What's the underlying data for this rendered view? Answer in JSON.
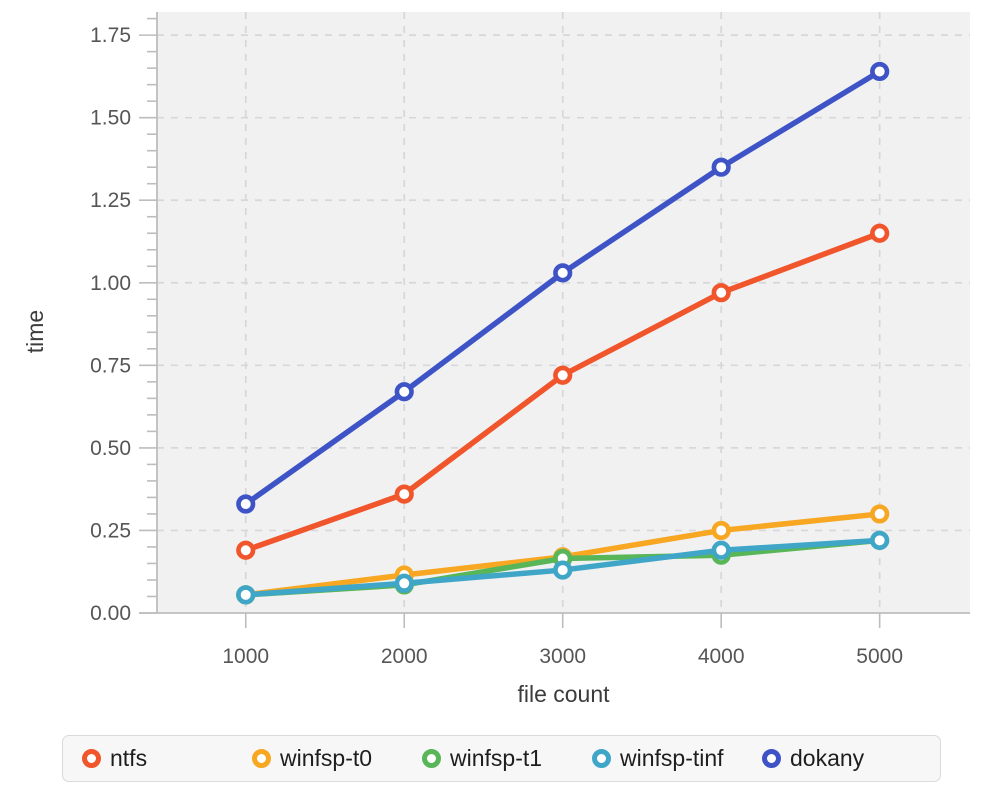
{
  "chart_data": {
    "type": "line",
    "title": "",
    "xlabel": "file count",
    "ylabel": "time",
    "x": [
      1000,
      2000,
      3000,
      4000,
      5000
    ],
    "series": [
      {
        "name": "ntfs",
        "color": "#F0552B",
        "values": [
          0.19,
          0.36,
          0.72,
          0.97,
          1.15
        ]
      },
      {
        "name": "winfsp-t0",
        "color": "#F7A722",
        "values": [
          0.055,
          0.115,
          0.17,
          0.25,
          0.3
        ]
      },
      {
        "name": "winfsp-t1",
        "color": "#58B658",
        "values": [
          0.055,
          0.085,
          0.165,
          0.175,
          0.22
        ]
      },
      {
        "name": "winfsp-tinf",
        "color": "#3FA6C7",
        "values": [
          0.055,
          0.09,
          0.13,
          0.19,
          0.22
        ]
      },
      {
        "name": "dokany",
        "color": "#3E54C6",
        "values": [
          0.33,
          0.67,
          1.03,
          1.35,
          1.64
        ]
      }
    ],
    "x_ticks": [
      1000,
      2000,
      3000,
      4000,
      5000
    ],
    "y_ticks": [
      0,
      0.25,
      0.5,
      0.75,
      1.0,
      1.25,
      1.5,
      1.75
    ],
    "y_tick_labels": [
      "0.00",
      "0.25",
      "0.50",
      "0.75",
      "1.00",
      "1.25",
      "1.50",
      "1.75"
    ],
    "xlim": [
      440,
      5570
    ],
    "ylim": [
      0,
      1.82
    ],
    "y_minor_step": 0.05,
    "grid": true,
    "legend_position": "bottom",
    "style": {
      "plot_bg": "#f1f1f2",
      "grid_color": "#d7d7d9",
      "axis_color": "#bdbdbf",
      "tick_label_color": "#565656",
      "marker_fill": "#ffffff"
    }
  }
}
